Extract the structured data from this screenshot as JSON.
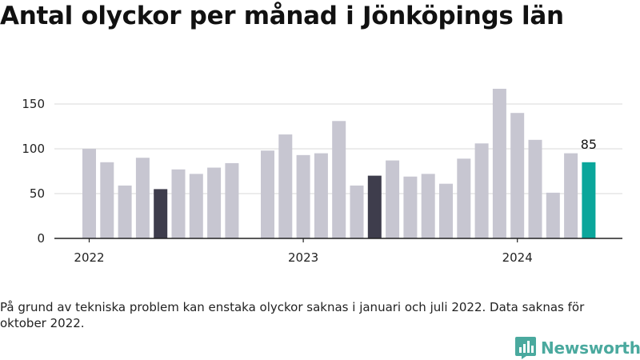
{
  "title": "Antal olyckor per månad i Jönköpings län",
  "note": "På grund av tekniska problem kan enstaka olyckor saknas i januari och juli 2022. Data saknas för oktober 2022.",
  "brand": {
    "name": "Newsworthy",
    "icon": "newsworthy-logo-icon",
    "color": "#4aa99e"
  },
  "colors": {
    "bar": "#c7c6d1",
    "highlight": "#3e3d4c",
    "latest": "#0aa69b",
    "grid": "#d9d9d9",
    "axis": "#222222"
  },
  "chart_data": {
    "type": "bar",
    "x": [
      "2022-01",
      "2022-02",
      "2022-03",
      "2022-04",
      "2022-05",
      "2022-06",
      "2022-07",
      "2022-08",
      "2022-09",
      "2022-10",
      "2022-11",
      "2022-12",
      "2023-01",
      "2023-02",
      "2023-03",
      "2023-04",
      "2023-05",
      "2023-06",
      "2023-07",
      "2023-08",
      "2023-09",
      "2023-10",
      "2023-11",
      "2023-12",
      "2024-01",
      "2024-02",
      "2024-03",
      "2024-04",
      "2024-05"
    ],
    "values": [
      100,
      85,
      59,
      90,
      55,
      77,
      72,
      79,
      84,
      null,
      98,
      116,
      93,
      95,
      131,
      59,
      70,
      87,
      69,
      72,
      61,
      89,
      106,
      167,
      140,
      110,
      51,
      95,
      85
    ],
    "highlighted": [
      "2022-05",
      "2023-05"
    ],
    "latest": "2024-05",
    "latest_label": "85",
    "xticks": [
      "2022",
      "2023",
      "2024"
    ],
    "yticks": [
      "0",
      "50",
      "100",
      "150"
    ],
    "ylim": [
      0,
      170
    ],
    "grid": true,
    "legend": "none"
  }
}
